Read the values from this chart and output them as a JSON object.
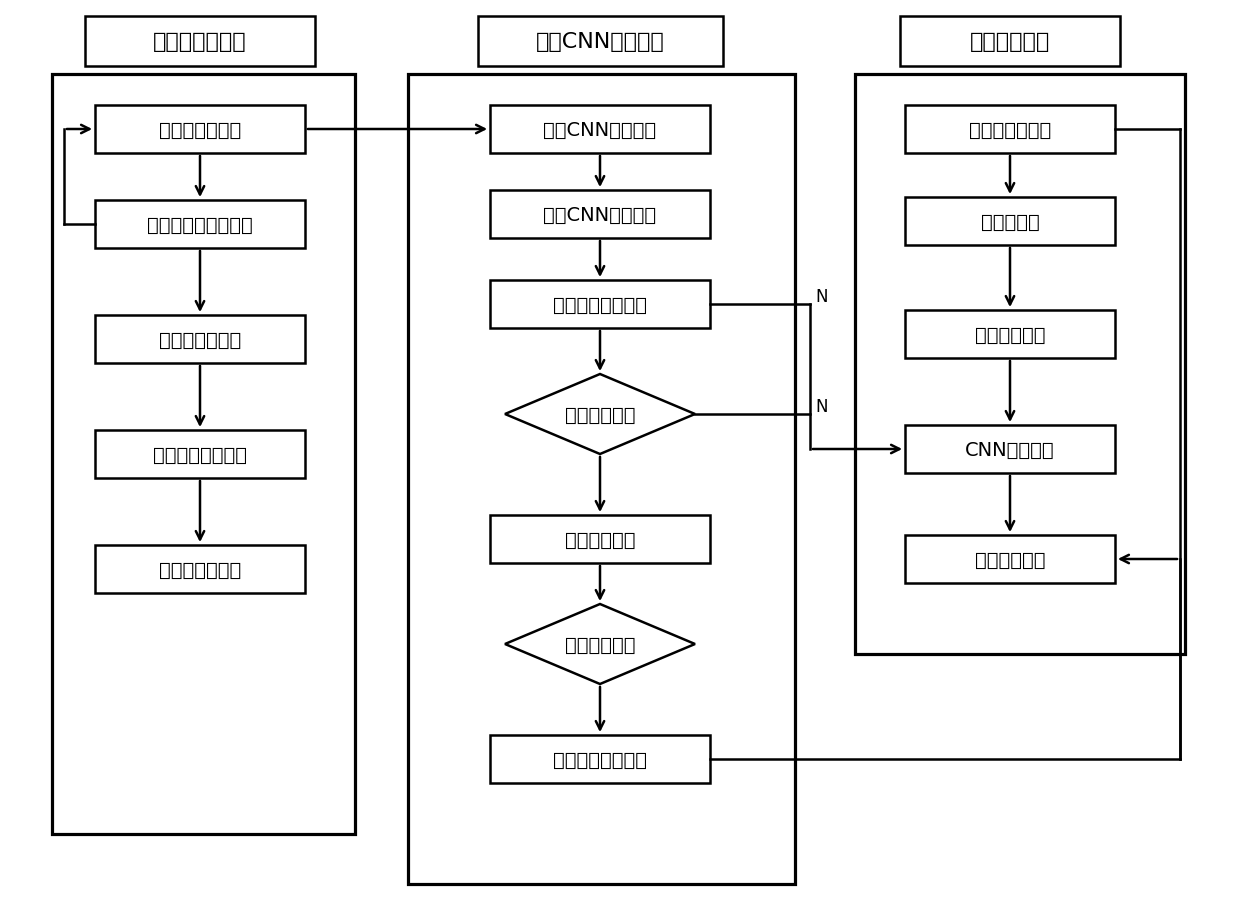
{
  "bg_color": "#ffffff",
  "col1_header": "构建样本数据库",
  "col2_header": "训练CNN神经网络",
  "col3_header": "危险物品检测",
  "col1_boxes": [
    "拍摄太赫兹图像",
    "裁剪危险品样本数据",
    "样本图像归一化",
    "样本分组添加标签",
    "加入样本数据库"
  ],
  "col2_rects": [
    "设计CNN神经网络",
    "优化CNN训练参数",
    "分组训练生成模型",
    "测试训练模型",
    "得到最优网络模型"
  ],
  "col2_diamonds": [
    "模型是否收敛",
    "模型是否满足"
  ],
  "col3_boxes": [
    "获取太赫兹图像",
    "图像预处理",
    "人体区域定位",
    "CNN目标检测",
    "获取检测结果"
  ],
  "font_size": 14,
  "header_font_size": 16,
  "lw": 1.8
}
